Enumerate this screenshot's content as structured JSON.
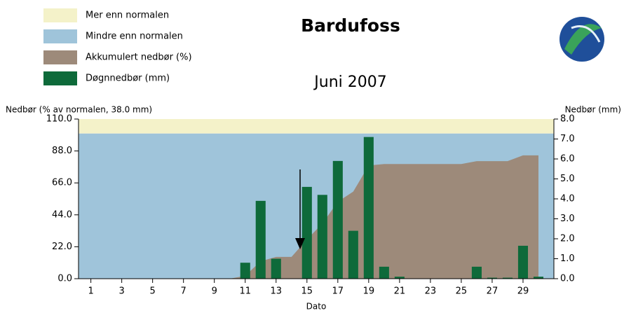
{
  "chart_data": {
    "type": "combo",
    "title": "Bardufoss",
    "subtitle": "Juni 2007",
    "ylabel": "Nedbør (% av normalen, 38.0 mm)",
    "y2label": "Nedbør (mm)",
    "xlabel": "Dato",
    "bands": [
      {
        "name": "Mer enn normalen",
        "color": "#f4f2c9",
        "range": [
          100,
          110
        ]
      },
      {
        "name": "Mindre enn normalen",
        "color": "#9fc4da",
        "range": [
          0,
          100
        ]
      }
    ],
    "x": [
      1,
      2,
      3,
      4,
      5,
      6,
      7,
      8,
      9,
      10,
      11,
      12,
      13,
      14,
      15,
      16,
      17,
      18,
      19,
      20,
      21,
      22,
      23,
      24,
      25,
      26,
      27,
      28,
      29,
      30
    ],
    "series": [
      {
        "name": "Akkumulert nedbør (%)",
        "type": "area",
        "axis": "y",
        "color": "#9d8a7a",
        "values": [
          0,
          0,
          0,
          0,
          0,
          0,
          0,
          0,
          0,
          0,
          2,
          12,
          15,
          15,
          27,
          38,
          53,
          60,
          78,
          79,
          79,
          79,
          79,
          79,
          79,
          81,
          81,
          81,
          85,
          85
        ]
      },
      {
        "name": "Døgnnedbør (mm)",
        "type": "bar",
        "axis": "y2",
        "color": "#0e6a3a",
        "values": [
          0,
          0,
          0,
          0,
          0,
          0,
          0,
          0,
          0,
          0,
          0.8,
          3.9,
          1.0,
          0,
          4.6,
          4.2,
          5.9,
          2.4,
          7.1,
          0.6,
          0.1,
          0,
          0,
          0,
          0,
          0.6,
          0.05,
          0.05,
          1.65,
          0.1
        ]
      }
    ],
    "xlim": [
      0.2,
      31
    ],
    "xticks": [
      1,
      3,
      5,
      7,
      9,
      11,
      13,
      15,
      17,
      19,
      21,
      23,
      25,
      27,
      29
    ],
    "ylim": [
      0,
      110
    ],
    "yticks": [
      {
        "value": 0,
        "label": "0.0"
      },
      {
        "value": 22,
        "label": "22.0"
      },
      {
        "value": 44,
        "label": "44.0"
      },
      {
        "value": 66,
        "label": "66.0"
      },
      {
        "value": 88,
        "label": "88.0"
      },
      {
        "value": 110,
        "label": "110.0"
      }
    ],
    "y2lim": [
      0,
      8
    ],
    "y2ticks": [
      {
        "value": 0,
        "label": "0.0"
      },
      {
        "value": 1,
        "label": "1.0"
      },
      {
        "value": 2,
        "label": "2.0"
      },
      {
        "value": 3,
        "label": "3.0"
      },
      {
        "value": 4,
        "label": "4.0"
      },
      {
        "value": 5,
        "label": "5.0"
      },
      {
        "value": 6,
        "label": "6.0"
      },
      {
        "value": 7,
        "label": "7.0"
      },
      {
        "value": 8,
        "label": "8.0"
      }
    ]
  }
}
